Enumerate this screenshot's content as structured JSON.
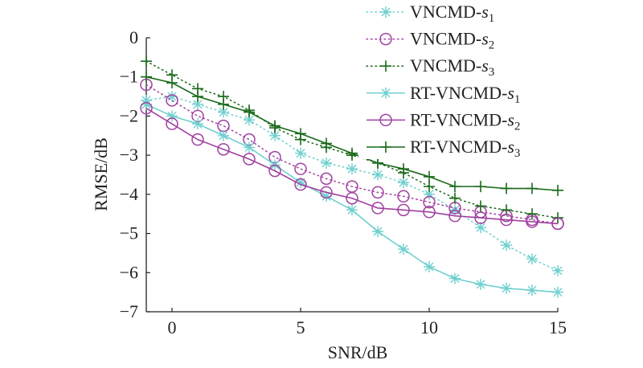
{
  "chart_data": {
    "type": "line",
    "title": "",
    "xlabel": "SNR/dB",
    "ylabel": "RMSE/dB",
    "xlim": [
      -1,
      15
    ],
    "ylim": [
      -7,
      0
    ],
    "xticks": [
      0,
      5,
      10,
      15
    ],
    "yticks": [
      0,
      -1,
      -2,
      -3,
      -4,
      -5,
      -6,
      -7
    ],
    "xtick_labels": [
      "0",
      "5",
      "10",
      "15"
    ],
    "ytick_labels": [
      "0",
      "−1",
      "−2",
      "−3",
      "−4",
      "−5",
      "−6",
      "−7"
    ],
    "grid": false,
    "legend_position": "top-right",
    "x": [
      -1,
      0,
      1,
      2,
      3,
      4,
      5,
      6,
      7,
      8,
      9,
      10,
      11,
      12,
      13,
      14,
      15
    ],
    "series": [
      {
        "name": "VNCMD-s1",
        "label_main": "VNCMD-",
        "label_var": "s",
        "label_sub": "1",
        "color": "#6fcfcf",
        "dash": "dotted",
        "marker": "asterisk",
        "values": [
          -1.6,
          -1.5,
          -1.7,
          -1.9,
          -2.1,
          -2.5,
          -2.95,
          -3.2,
          -3.35,
          -3.5,
          -3.7,
          -4.0,
          -4.4,
          -4.85,
          -5.3,
          -5.65,
          -5.95
        ]
      },
      {
        "name": "VNCMD-s2",
        "label_main": "VNCMD-",
        "label_var": "s",
        "label_sub": "2",
        "color": "#a040a0",
        "dash": "dotted",
        "marker": "circle",
        "values": [
          -1.2,
          -1.6,
          -2.0,
          -2.25,
          -2.6,
          -3.05,
          -3.35,
          -3.6,
          -3.8,
          -3.95,
          -4.05,
          -4.2,
          -4.35,
          -4.45,
          -4.55,
          -4.65,
          -4.75
        ]
      },
      {
        "name": "VNCMD-s3",
        "label_main": "VNCMD-",
        "label_var": "s",
        "label_sub": "3",
        "color": "#1a6a1a",
        "dash": "dotted",
        "marker": "plus",
        "values": [
          -0.6,
          -0.95,
          -1.3,
          -1.5,
          -1.85,
          -2.3,
          -2.6,
          -2.8,
          -3.0,
          -3.2,
          -3.45,
          -3.8,
          -4.1,
          -4.3,
          -4.4,
          -4.5,
          -4.6
        ]
      },
      {
        "name": "RT-VNCMD-s1",
        "label_main": "RT-VNCMD-",
        "label_var": "s",
        "label_sub": "1",
        "color": "#6fcfcf",
        "dash": "solid",
        "marker": "asterisk",
        "values": [
          -1.7,
          -2.0,
          -2.2,
          -2.5,
          -2.8,
          -3.25,
          -3.7,
          -4.05,
          -4.4,
          -4.95,
          -5.4,
          -5.85,
          -6.15,
          -6.3,
          -6.4,
          -6.45,
          -6.5
        ]
      },
      {
        "name": "RT-VNCMD-s2",
        "label_main": "RT-VNCMD-",
        "label_var": "s",
        "label_sub": "2",
        "color": "#a040a0",
        "dash": "solid",
        "marker": "circle",
        "values": [
          -1.8,
          -2.2,
          -2.6,
          -2.85,
          -3.1,
          -3.4,
          -3.75,
          -3.95,
          -4.1,
          -4.35,
          -4.4,
          -4.45,
          -4.55,
          -4.6,
          -4.65,
          -4.7,
          -4.75
        ]
      },
      {
        "name": "RT-VNCMD-s3",
        "label_main": "RT-VNCMD-",
        "label_var": "s",
        "label_sub": "3",
        "color": "#1a6a1a",
        "dash": "solid",
        "marker": "plus",
        "values": [
          -1.0,
          -1.15,
          -1.5,
          -1.7,
          -1.9,
          -2.25,
          -2.45,
          -2.7,
          -2.95,
          -3.2,
          -3.35,
          -3.55,
          -3.8,
          -3.8,
          -3.85,
          -3.85,
          -3.9
        ]
      }
    ]
  }
}
